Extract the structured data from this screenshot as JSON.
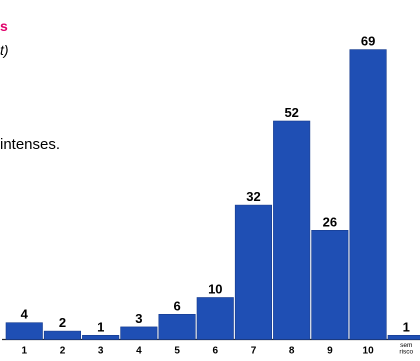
{
  "colors": {
    "bar_fill": "#1f4fb4",
    "bar_edge": "#163b8c",
    "pink_fragment": "#e0006a",
    "text": "#000000"
  },
  "fragments": {
    "pink": "s",
    "paren": "t)",
    "body": "intenses."
  },
  "chart_data": {
    "type": "bar",
    "categories": [
      "1",
      "2",
      "3",
      "4",
      "5",
      "6",
      "7",
      "8",
      "9",
      "10",
      "sem\nrisco"
    ],
    "values": [
      4,
      2,
      1,
      3,
      6,
      10,
      32,
      52,
      26,
      69,
      1
    ],
    "data_labels": [
      "4",
      "2",
      "1",
      "3",
      "6",
      "10",
      "32",
      "52",
      "26",
      "69",
      "1"
    ],
    "ylim": [
      0,
      72
    ],
    "grid": false,
    "legend": "none",
    "title": "",
    "xlabel": "",
    "ylabel": ""
  }
}
